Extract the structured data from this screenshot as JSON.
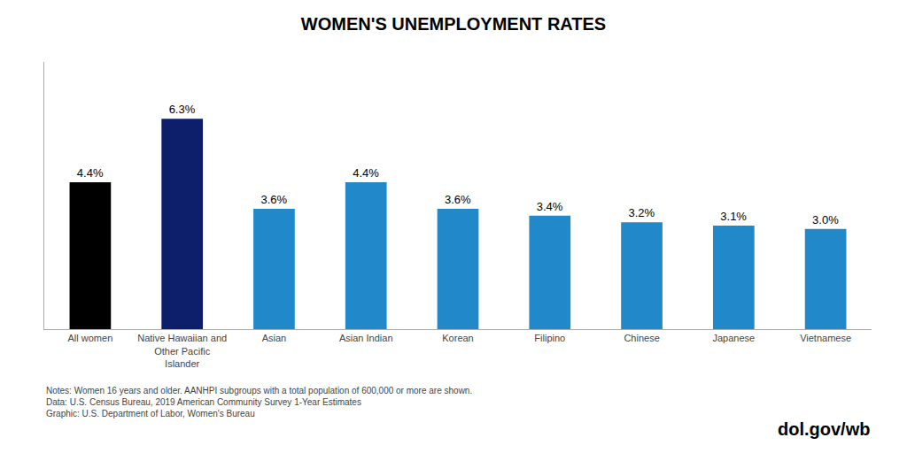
{
  "chart_data": {
    "type": "bar",
    "title": "WOMEN'S UNEMPLOYMENT RATES",
    "categories": [
      "All women",
      "Native Hawaiian and\nOther Pacific\nIslander",
      "Asian",
      "Asian Indian",
      "Korean",
      "Filipino",
      "Chinese",
      "Japanese",
      "Vietnamese"
    ],
    "values": [
      4.4,
      6.3,
      3.6,
      4.4,
      3.6,
      3.4,
      3.2,
      3.1,
      3.0
    ],
    "value_labels": [
      "4.4%",
      "6.3%",
      "3.6%",
      "4.4%",
      "3.6%",
      "3.4%",
      "3.2%",
      "3.1%",
      "3.0%"
    ],
    "colors": [
      "#000000",
      "#0d1f6b",
      "#2188c9",
      "#2188c9",
      "#2188c9",
      "#2188c9",
      "#2188c9",
      "#2188c9",
      "#2188c9"
    ],
    "data_labels": true,
    "ylim": [
      0,
      8
    ],
    "grid": false,
    "tick_labels": "x",
    "annotations": [
      "Notes: Women 16 years and older. AANHPI subgroups with a total population of 600,000 or more are shown.\nData: U.S. Census Bureau, 2019 American Community Survey 1-Year Estimates\nGraphic: U.S. Department of Labor, Women's Bureau",
      "dol.gov/wb"
    ]
  }
}
